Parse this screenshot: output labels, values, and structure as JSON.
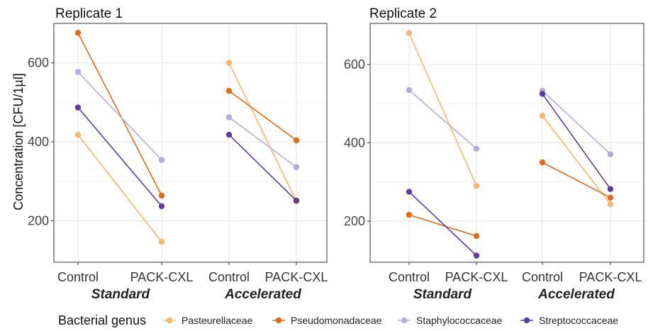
{
  "chart_data": {
    "type": "line",
    "ylabel": "Concentration [CFU/1µl]",
    "legend": {
      "title": "Bacterial genus",
      "position": "bottom",
      "entries": [
        "Pasteurellaceae",
        "Pseudomonadaceae",
        "Staphylococcaceae",
        "Streptococcaceae"
      ]
    },
    "colors": {
      "Pasteurellaceae": "#f5b86a",
      "Pseudomonadaceae": "#e06b1a",
      "Staphylococcaceae": "#b3aed8",
      "Streptococcaceae": "#5e3c99"
    },
    "categories": [
      "Control",
      "PACK-CXL",
      "Control",
      "PACK-CXL"
    ],
    "groups": [
      "Standard",
      "Accelerated"
    ],
    "grid": true,
    "panels": [
      {
        "title": "Replicate 1",
        "ylim": [
          95,
          700
        ],
        "yticks": [
          200,
          400,
          600
        ],
        "series": [
          {
            "name": "Pasteurellaceae",
            "standard": [
              418,
              147
            ],
            "accelerated": [
              600,
              250
            ]
          },
          {
            "name": "Pseudomonadaceae",
            "standard": [
              676,
              264
            ],
            "accelerated": [
              529,
              404
            ]
          },
          {
            "name": "Staphylococcaceae",
            "standard": [
              577,
              354
            ],
            "accelerated": [
              462,
              336
            ]
          },
          {
            "name": "Streptococcaceae",
            "standard": [
              487,
              237
            ],
            "accelerated": [
              418,
              251
            ]
          }
        ]
      },
      {
        "title": "Replicate 2",
        "ylim": [
          95,
          705
        ],
        "yticks": [
          200,
          400,
          600
        ],
        "series": [
          {
            "name": "Pasteurellaceae",
            "standard": [
              680,
              290
            ],
            "accelerated": [
              469,
              243
            ]
          },
          {
            "name": "Pseudomonadaceae",
            "standard": [
              216,
              162
            ],
            "accelerated": [
              350,
              260
            ]
          },
          {
            "name": "Staphylococcaceae",
            "standard": [
              535,
              385
            ],
            "accelerated": [
              533,
              371
            ]
          },
          {
            "name": "Streptococcaceae",
            "standard": [
              275,
              112
            ],
            "accelerated": [
              525,
              282
            ]
          }
        ]
      }
    ]
  }
}
